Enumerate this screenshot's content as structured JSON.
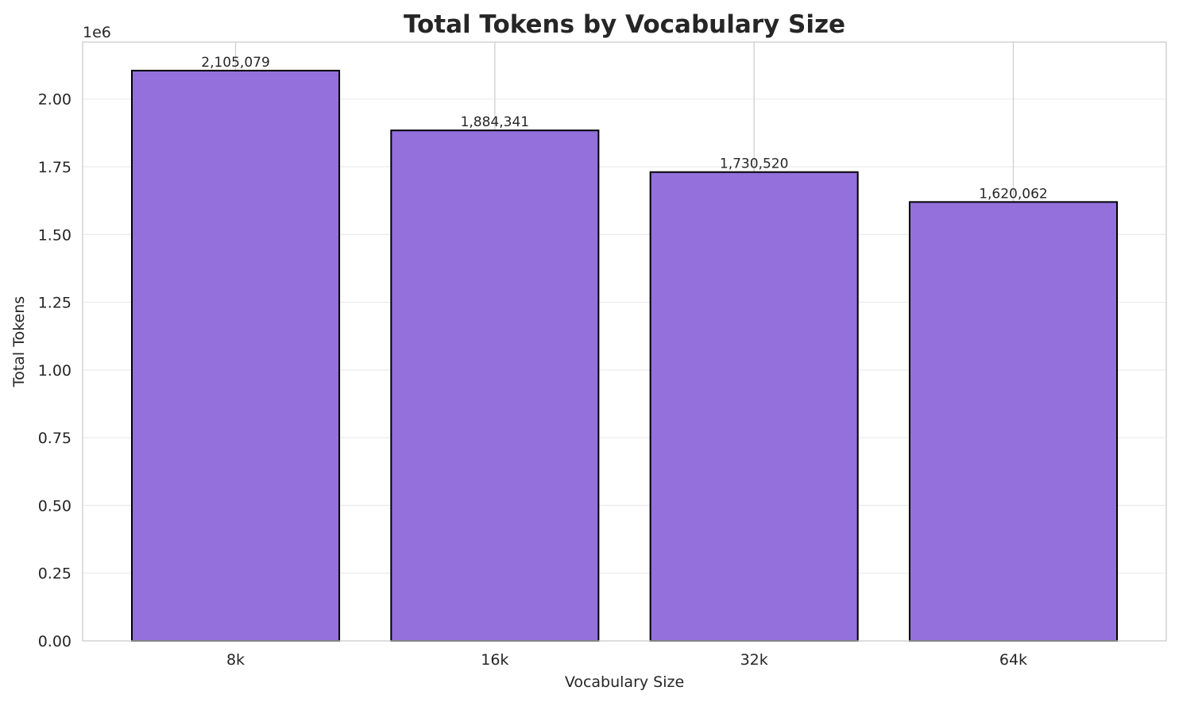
{
  "chart_data": {
    "type": "bar",
    "title": "Total Tokens by Vocabulary Size",
    "xlabel": "Vocabulary Size",
    "ylabel": "Total Tokens",
    "y_offset_label": "1e6",
    "categories": [
      "8k",
      "16k",
      "32k",
      "64k"
    ],
    "values": [
      2105079,
      1884341,
      1730520,
      1620062
    ],
    "data_labels": [
      "2,105,079",
      "1,884,341",
      "1,730,520",
      "1,620,062"
    ],
    "ylim": [
      0,
      2210333
    ],
    "yticks": [
      0,
      250000,
      500000,
      750000,
      1000000,
      1250000,
      1500000,
      1750000,
      2000000
    ],
    "ytick_labels": [
      "0.00",
      "0.25",
      "0.50",
      "0.75",
      "1.00",
      "1.25",
      "1.50",
      "1.75",
      "2.00"
    ],
    "grid": true,
    "bar_color": "#9370DB",
    "bar_edge_color": "#000000"
  }
}
